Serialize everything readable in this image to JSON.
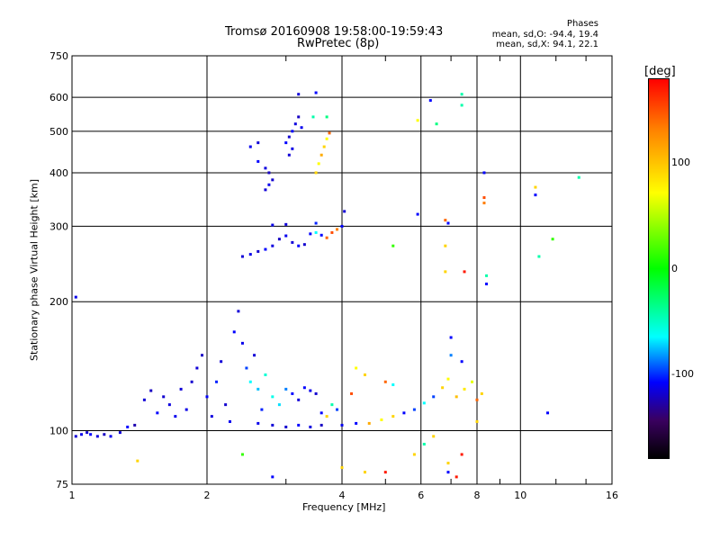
{
  "title": "Tromsø 20160908 19:58:00-19:59:43",
  "subtitle": "RwPretec (8p)",
  "phase_info": {
    "header": "Phases",
    "line_o": "mean, sd,O: -94.4, 19.4",
    "line_x": "mean, sd,X:  94.1, 22.1"
  },
  "chart_data": {
    "type": "scatter",
    "title": "Tromsø 20160908 19:58:00-19:59:43",
    "subtitle": "RwPretec (8p)",
    "xlabel": "Frequency [MHz]",
    "ylabel": "Stationary phase Virtual Height [km]",
    "x_scale": "log",
    "y_scale": "log",
    "xlim": [
      1,
      16
    ],
    "ylim": [
      75,
      750
    ],
    "x_ticks": [
      1,
      2,
      4,
      6,
      8,
      10,
      16
    ],
    "y_ticks": [
      75,
      100,
      200,
      300,
      400,
      500,
      600,
      750
    ],
    "grid": true,
    "colorbar": {
      "label": "[deg]",
      "range": [
        -180,
        180
      ],
      "ticks": [
        100,
        0,
        -100
      ],
      "colors": [
        "#ff0000",
        "#ff7f00",
        "#ffff00",
        "#00ff00",
        "#00ffff",
        "#0000ff",
        "#3a0060",
        "#000000"
      ]
    },
    "points": [
      {
        "x": 1.02,
        "y": 97,
        "phase": -110
      },
      {
        "x": 1.05,
        "y": 98,
        "phase": -105
      },
      {
        "x": 1.08,
        "y": 99,
        "phase": -112
      },
      {
        "x": 1.1,
        "y": 98,
        "phase": -100
      },
      {
        "x": 1.14,
        "y": 97,
        "phase": -108
      },
      {
        "x": 1.18,
        "y": 98,
        "phase": -115
      },
      {
        "x": 1.22,
        "y": 97,
        "phase": -104
      },
      {
        "x": 1.28,
        "y": 99,
        "phase": -110
      },
      {
        "x": 1.33,
        "y": 102,
        "phase": -100
      },
      {
        "x": 1.38,
        "y": 103,
        "phase": -120
      },
      {
        "x": 1.02,
        "y": 205,
        "phase": -105
      },
      {
        "x": 1.45,
        "y": 118,
        "phase": -110
      },
      {
        "x": 1.5,
        "y": 124,
        "phase": -115
      },
      {
        "x": 1.55,
        "y": 110,
        "phase": -100
      },
      {
        "x": 1.6,
        "y": 120,
        "phase": -112
      },
      {
        "x": 1.65,
        "y": 115,
        "phase": -108
      },
      {
        "x": 1.7,
        "y": 108,
        "phase": -104
      },
      {
        "x": 1.75,
        "y": 125,
        "phase": -110
      },
      {
        "x": 1.8,
        "y": 112,
        "phase": -106
      },
      {
        "x": 1.85,
        "y": 130,
        "phase": -112
      },
      {
        "x": 1.9,
        "y": 140,
        "phase": -110
      },
      {
        "x": 1.95,
        "y": 150,
        "phase": -115
      },
      {
        "x": 2.0,
        "y": 120,
        "phase": -100
      },
      {
        "x": 2.05,
        "y": 108,
        "phase": -108
      },
      {
        "x": 2.1,
        "y": 130,
        "phase": -95
      },
      {
        "x": 2.15,
        "y": 145,
        "phase": -110
      },
      {
        "x": 2.2,
        "y": 115,
        "phase": -112
      },
      {
        "x": 2.25,
        "y": 105,
        "phase": -104
      },
      {
        "x": 1.4,
        "y": 85,
        "phase": 110
      },
      {
        "x": 2.3,
        "y": 170,
        "phase": -100
      },
      {
        "x": 2.35,
        "y": 190,
        "phase": -110
      },
      {
        "x": 2.4,
        "y": 160,
        "phase": -105
      },
      {
        "x": 2.45,
        "y": 140,
        "phase": -90
      },
      {
        "x": 2.5,
        "y": 130,
        "phase": -60
      },
      {
        "x": 2.55,
        "y": 150,
        "phase": -110
      },
      {
        "x": 2.6,
        "y": 125,
        "phase": -70
      },
      {
        "x": 2.65,
        "y": 112,
        "phase": -95
      },
      {
        "x": 2.7,
        "y": 135,
        "phase": -50
      },
      {
        "x": 2.8,
        "y": 120,
        "phase": -55
      },
      {
        "x": 2.9,
        "y": 115,
        "phase": -65
      },
      {
        "x": 3.0,
        "y": 125,
        "phase": -80
      },
      {
        "x": 3.1,
        "y": 122,
        "phase": -100
      },
      {
        "x": 3.2,
        "y": 118,
        "phase": -110
      },
      {
        "x": 3.3,
        "y": 126,
        "phase": -100
      },
      {
        "x": 3.4,
        "y": 124,
        "phase": -105
      },
      {
        "x": 3.5,
        "y": 122,
        "phase": -112
      },
      {
        "x": 3.6,
        "y": 110,
        "phase": -100
      },
      {
        "x": 3.7,
        "y": 108,
        "phase": 110
      },
      {
        "x": 3.8,
        "y": 115,
        "phase": -40
      },
      {
        "x": 3.9,
        "y": 112,
        "phase": -90
      },
      {
        "x": 2.6,
        "y": 104,
        "phase": -105
      },
      {
        "x": 2.8,
        "y": 103,
        "phase": -110
      },
      {
        "x": 3.0,
        "y": 102,
        "phase": -112
      },
      {
        "x": 3.2,
        "y": 103,
        "phase": -100
      },
      {
        "x": 3.4,
        "y": 102,
        "phase": -108
      },
      {
        "x": 3.6,
        "y": 103,
        "phase": -115
      },
      {
        "x": 4.0,
        "y": 103,
        "phase": -104
      },
      {
        "x": 4.3,
        "y": 104,
        "phase": -100
      },
      {
        "x": 4.6,
        "y": 104,
        "phase": 120
      },
      {
        "x": 4.9,
        "y": 106,
        "phase": 100
      },
      {
        "x": 5.2,
        "y": 108,
        "phase": 110
      },
      {
        "x": 5.5,
        "y": 110,
        "phase": -100
      },
      {
        "x": 5.8,
        "y": 112,
        "phase": -90
      },
      {
        "x": 6.1,
        "y": 116,
        "phase": -60
      },
      {
        "x": 6.4,
        "y": 120,
        "phase": -90
      },
      {
        "x": 6.7,
        "y": 126,
        "phase": 110
      },
      {
        "x": 6.9,
        "y": 132,
        "phase": 100
      },
      {
        "x": 7.2,
        "y": 120,
        "phase": 115
      },
      {
        "x": 7.5,
        "y": 125,
        "phase": 105
      },
      {
        "x": 7.8,
        "y": 130,
        "phase": 90
      },
      {
        "x": 8.0,
        "y": 118,
        "phase": 140
      },
      {
        "x": 8.2,
        "y": 122,
        "phase": 110
      },
      {
        "x": 7.0,
        "y": 150,
        "phase": -80
      },
      {
        "x": 7.4,
        "y": 145,
        "phase": -100
      },
      {
        "x": 4.3,
        "y": 140,
        "phase": 100
      },
      {
        "x": 4.5,
        "y": 135,
        "phase": 110
      },
      {
        "x": 5.0,
        "y": 130,
        "phase": 140
      },
      {
        "x": 5.2,
        "y": 128,
        "phase": -60
      },
      {
        "x": 4.2,
        "y": 122,
        "phase": 150
      },
      {
        "x": 2.4,
        "y": 255,
        "phase": -110
      },
      {
        "x": 2.5,
        "y": 258,
        "phase": -105
      },
      {
        "x": 2.6,
        "y": 262,
        "phase": -112
      },
      {
        "x": 2.7,
        "y": 265,
        "phase": -100
      },
      {
        "x": 2.8,
        "y": 270,
        "phase": -108
      },
      {
        "x": 2.9,
        "y": 280,
        "phase": -115
      },
      {
        "x": 3.0,
        "y": 285,
        "phase": -104
      },
      {
        "x": 3.1,
        "y": 275,
        "phase": -110
      },
      {
        "x": 3.2,
        "y": 270,
        "phase": -100
      },
      {
        "x": 3.3,
        "y": 272,
        "phase": -112
      },
      {
        "x": 3.4,
        "y": 288,
        "phase": -100
      },
      {
        "x": 3.5,
        "y": 290,
        "phase": -60
      },
      {
        "x": 3.6,
        "y": 286,
        "phase": -100
      },
      {
        "x": 3.7,
        "y": 282,
        "phase": 140
      },
      {
        "x": 3.8,
        "y": 290,
        "phase": 150
      },
      {
        "x": 3.9,
        "y": 295,
        "phase": 130
      },
      {
        "x": 4.0,
        "y": 300,
        "phase": -100
      },
      {
        "x": 4.05,
        "y": 325,
        "phase": -110
      },
      {
        "x": 2.8,
        "y": 302,
        "phase": -105
      },
      {
        "x": 3.0,
        "y": 303,
        "phase": -110
      },
      {
        "x": 3.5,
        "y": 305,
        "phase": -95
      },
      {
        "x": 2.7,
        "y": 365,
        "phase": -110
      },
      {
        "x": 2.75,
        "y": 375,
        "phase": -105
      },
      {
        "x": 2.8,
        "y": 385,
        "phase": -112
      },
      {
        "x": 2.6,
        "y": 425,
        "phase": -100
      },
      {
        "x": 2.7,
        "y": 410,
        "phase": -108
      },
      {
        "x": 2.75,
        "y": 400,
        "phase": -115
      },
      {
        "x": 2.5,
        "y": 460,
        "phase": -104
      },
      {
        "x": 2.6,
        "y": 470,
        "phase": -110
      },
      {
        "x": 3.0,
        "y": 470,
        "phase": -100
      },
      {
        "x": 3.05,
        "y": 485,
        "phase": -112
      },
      {
        "x": 3.1,
        "y": 500,
        "phase": -100
      },
      {
        "x": 3.15,
        "y": 520,
        "phase": -108
      },
      {
        "x": 3.2,
        "y": 540,
        "phase": -115
      },
      {
        "x": 3.25,
        "y": 510,
        "phase": -104
      },
      {
        "x": 3.05,
        "y": 440,
        "phase": -110
      },
      {
        "x": 3.1,
        "y": 455,
        "phase": -106
      },
      {
        "x": 3.5,
        "y": 400,
        "phase": 110
      },
      {
        "x": 3.55,
        "y": 420,
        "phase": 100
      },
      {
        "x": 3.6,
        "y": 440,
        "phase": 120
      },
      {
        "x": 3.65,
        "y": 460,
        "phase": 110
      },
      {
        "x": 3.7,
        "y": 480,
        "phase": 100
      },
      {
        "x": 3.75,
        "y": 495,
        "phase": 140
      },
      {
        "x": 3.45,
        "y": 540,
        "phase": -40
      },
      {
        "x": 3.7,
        "y": 540,
        "phase": -30
      },
      {
        "x": 3.2,
        "y": 610,
        "phase": -110
      },
      {
        "x": 3.5,
        "y": 615,
        "phase": -100
      },
      {
        "x": 5.9,
        "y": 530,
        "phase": 100
      },
      {
        "x": 6.5,
        "y": 520,
        "phase": -30
      },
      {
        "x": 6.3,
        "y": 590,
        "phase": -100
      },
      {
        "x": 7.4,
        "y": 610,
        "phase": -40
      },
      {
        "x": 7.4,
        "y": 575,
        "phase": -40
      },
      {
        "x": 8.3,
        "y": 400,
        "phase": -100
      },
      {
        "x": 8.3,
        "y": 350,
        "phase": 150
      },
      {
        "x": 8.3,
        "y": 340,
        "phase": 130
      },
      {
        "x": 10.8,
        "y": 370,
        "phase": 110
      },
      {
        "x": 10.8,
        "y": 355,
        "phase": -100
      },
      {
        "x": 13.5,
        "y": 390,
        "phase": -40
      },
      {
        "x": 5.9,
        "y": 320,
        "phase": -100
      },
      {
        "x": 6.8,
        "y": 310,
        "phase": 140
      },
      {
        "x": 6.9,
        "y": 305,
        "phase": -100
      },
      {
        "x": 6.8,
        "y": 270,
        "phase": 110
      },
      {
        "x": 5.2,
        "y": 270,
        "phase": 20
      },
      {
        "x": 7.5,
        "y": 235,
        "phase": 170
      },
      {
        "x": 8.4,
        "y": 230,
        "phase": -40
      },
      {
        "x": 8.4,
        "y": 220,
        "phase": -100
      },
      {
        "x": 11.0,
        "y": 255,
        "phase": -40
      },
      {
        "x": 11.8,
        "y": 280,
        "phase": 20
      },
      {
        "x": 6.8,
        "y": 235,
        "phase": 110
      },
      {
        "x": 4.0,
        "y": 82,
        "phase": 110
      },
      {
        "x": 4.5,
        "y": 80,
        "phase": 110
      },
      {
        "x": 5.0,
        "y": 80,
        "phase": 170
      },
      {
        "x": 5.8,
        "y": 88,
        "phase": 110
      },
      {
        "x": 6.1,
        "y": 93,
        "phase": -40
      },
      {
        "x": 6.4,
        "y": 97,
        "phase": 110
      },
      {
        "x": 6.9,
        "y": 84,
        "phase": 110
      },
      {
        "x": 7.4,
        "y": 88,
        "phase": 170
      },
      {
        "x": 7.2,
        "y": 78,
        "phase": 170
      },
      {
        "x": 6.9,
        "y": 80,
        "phase": -100
      },
      {
        "x": 2.8,
        "y": 78,
        "phase": -100
      },
      {
        "x": 2.4,
        "y": 88,
        "phase": 20
      },
      {
        "x": 11.5,
        "y": 110,
        "phase": -100
      },
      {
        "x": 8.0,
        "y": 105,
        "phase": 110
      },
      {
        "x": 7.0,
        "y": 165,
        "phase": -100
      }
    ]
  }
}
